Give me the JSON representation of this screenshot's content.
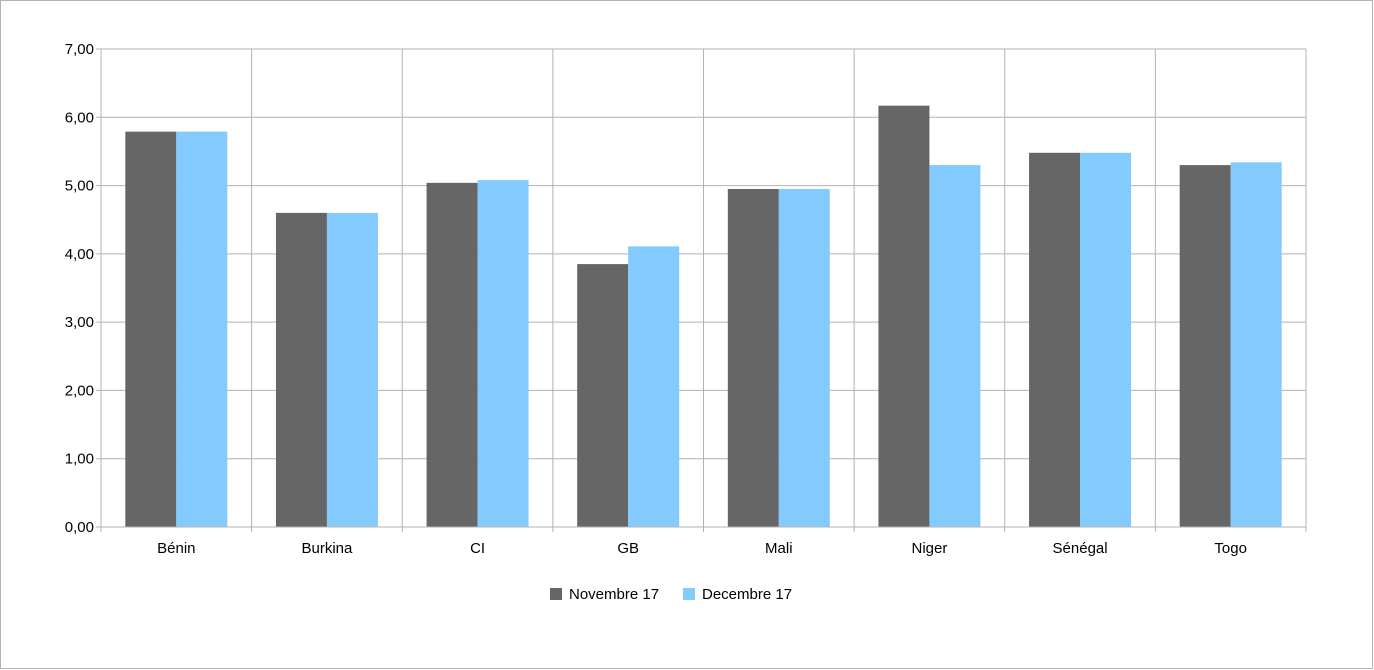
{
  "chart_data": {
    "type": "bar",
    "title": "",
    "xlabel": "",
    "ylabel": "",
    "categories": [
      "Bénin",
      "Burkina",
      "CI",
      "GB",
      "Mali",
      "Niger",
      "Sénégal",
      "Togo"
    ],
    "series": [
      {
        "name": "Novembre 17",
        "color": "#666666",
        "values": [
          5.79,
          4.6,
          5.04,
          3.85,
          4.95,
          6.17,
          5.48,
          5.3
        ]
      },
      {
        "name": "Decembre 17",
        "color": "#83caff",
        "values": [
          5.79,
          4.6,
          5.08,
          4.11,
          4.95,
          5.3,
          5.48,
          5.34
        ]
      }
    ],
    "ylim": [
      0,
      7
    ],
    "yticks": [
      "0,00",
      "1,00",
      "2,00",
      "3,00",
      "4,00",
      "5,00",
      "6,00",
      "7,00"
    ],
    "grid": true,
    "legend_position": "bottom"
  }
}
